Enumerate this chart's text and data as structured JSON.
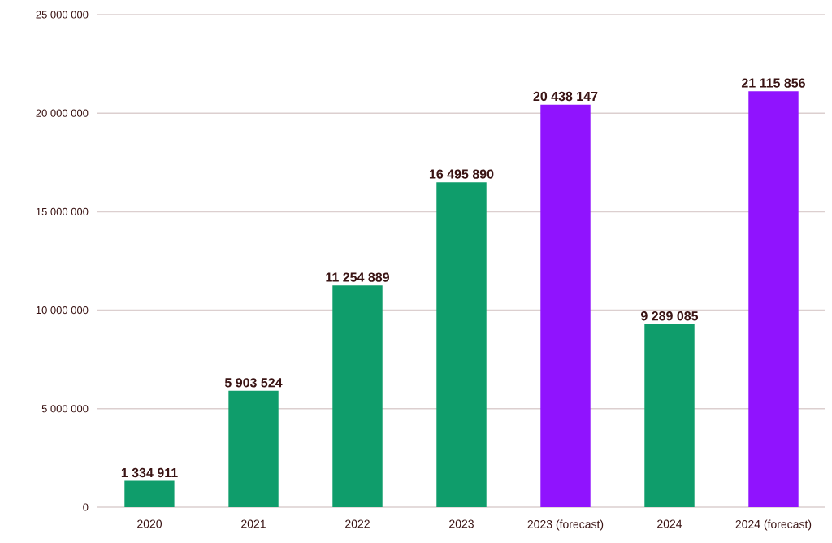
{
  "chart_data": {
    "type": "bar",
    "categories": [
      "2020",
      "2021",
      "2022",
      "2023",
      "2023 (forecast)",
      "2024",
      "2024 (forecast)"
    ],
    "values": [
      1334911,
      5903524,
      11254889,
      16495890,
      20438147,
      9289085,
      21115856
    ],
    "colors": [
      "#0f9d6b",
      "#0f9d6b",
      "#0f9d6b",
      "#0f9d6b",
      "#9013fe",
      "#0f9d6b",
      "#9013fe"
    ],
    "value_labels": [
      "1 334 911",
      "5 903 524",
      "11 254 889",
      "16 495 890",
      "20 438 147",
      "9 289 085",
      "21 115 856"
    ],
    "ylim": [
      0,
      25000000
    ],
    "yticks": [
      {
        "value": 0,
        "label": "0"
      },
      {
        "value": 5000000,
        "label": "5 000 000"
      },
      {
        "value": 10000000,
        "label": "10 000 000"
      },
      {
        "value": 15000000,
        "label": "15 000 000"
      },
      {
        "value": 20000000,
        "label": "20 000 000"
      },
      {
        "value": 25000000,
        "label": "25 000 000"
      }
    ],
    "grid": "y"
  }
}
